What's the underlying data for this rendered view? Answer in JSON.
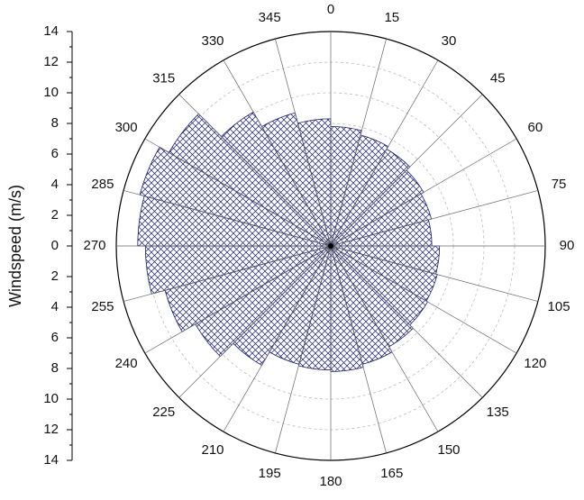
{
  "chart_data": {
    "type": "polar-bar",
    "y_label": "Windspeed (m/s)",
    "angles": [
      0,
      15,
      30,
      45,
      60,
      75,
      90,
      105,
      120,
      135,
      150,
      165,
      180,
      195,
      210,
      225,
      240,
      255,
      270,
      285,
      300,
      315,
      330,
      345
    ],
    "values": [
      7.8,
      7.5,
      7.3,
      7.0,
      6.8,
      6.6,
      7.1,
      7.2,
      7.3,
      7.6,
      8.0,
      8.2,
      8.1,
      8.0,
      9.0,
      10.2,
      11.2,
      12.1,
      12.6,
      12.9,
      12.2,
      10.1,
      9.0,
      8.3
    ],
    "color": "#1a1a6e",
    "rlim": [
      0,
      14
    ],
    "rticks": [
      0,
      2,
      4,
      6,
      8,
      10,
      12,
      14
    ],
    "grid": true
  }
}
